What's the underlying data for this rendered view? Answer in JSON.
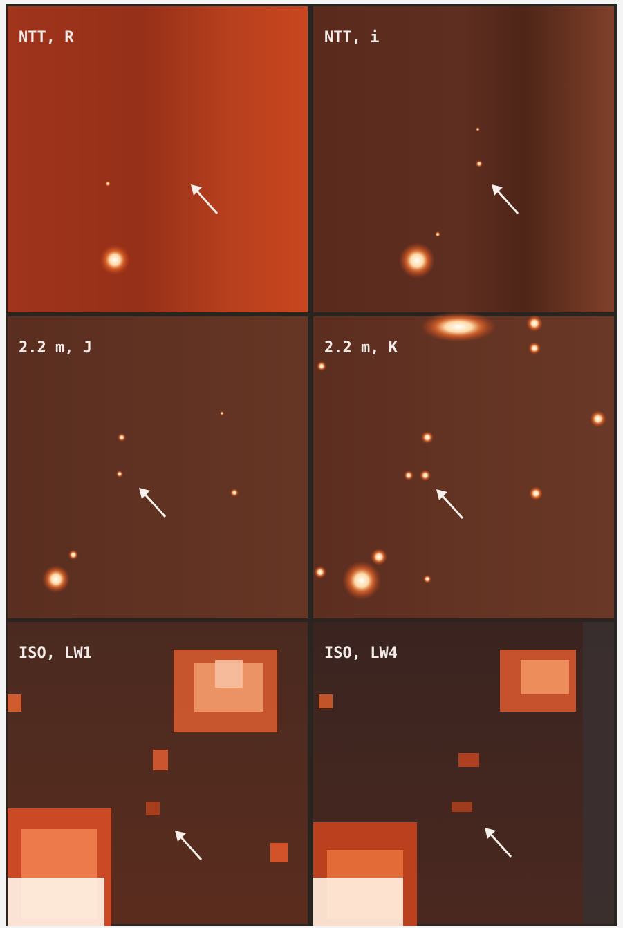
{
  "panels": [
    {
      "label": "NTT, R"
    },
    {
      "label": "NTT, i"
    },
    {
      "label": "2.2 m, J"
    },
    {
      "label": "2.2 m, K"
    },
    {
      "label": "ISO, LW1"
    },
    {
      "label": "ISO, LW4"
    }
  ]
}
